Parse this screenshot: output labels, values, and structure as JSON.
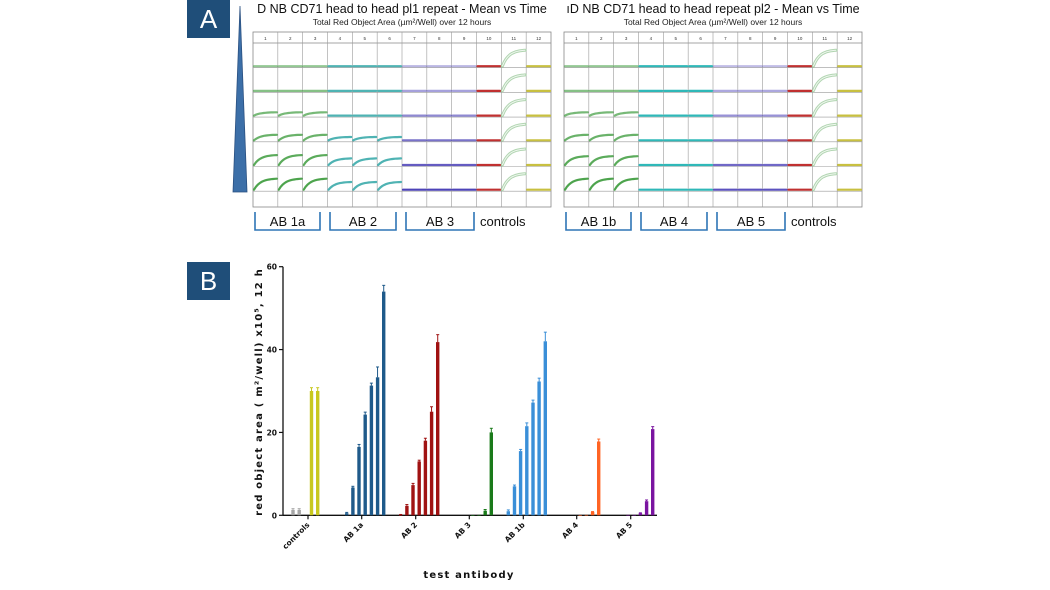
{
  "panel_labels": {
    "a": "A",
    "b": "B"
  },
  "colors": {
    "panel_box": "#1f4e79",
    "bracket": "#2e75b6",
    "wedge": "#3c6fa8"
  },
  "panel_a": {
    "plates": [
      {
        "title": "D NB CD71 head to head pl1 repeat - Mean vs Time",
        "subtitle": "Total Red Object Area (µm²/Well) over 12 hours",
        "columns": [
          "1",
          "2",
          "3",
          "4",
          "5",
          "6",
          "7",
          "8",
          "9",
          "10",
          "11",
          "12"
        ],
        "group_labels": [
          "AB 1a",
          "AB 2",
          "AB 3"
        ],
        "controls_label": "controls",
        "curve_levels": {
          "g1": [
            0,
            0,
            0.3,
            0.5,
            0.9,
            1,
            1
          ],
          "g2": [
            0,
            0,
            0,
            0.3,
            0.6,
            0.7,
            0.5
          ],
          "g3": [
            0,
            0,
            0,
            0,
            0,
            0,
            0
          ]
        },
        "group_colors": {
          "g1": "#3a9a3a",
          "g2": "#4fb3b3",
          "g3": "#3a2fb0",
          "c10": "#c03030",
          "c11": "#a8d0a8",
          "c12": "#c8c040"
        }
      },
      {
        "title": "ıD NB CD71 head to head repeat pl2 - Mean vs Time",
        "subtitle": "Total Red Object Area (µm²/Well) over 12 hours",
        "columns": [
          "1",
          "2",
          "3",
          "4",
          "5",
          "6",
          "7",
          "8",
          "9",
          "10",
          "11",
          "12"
        ],
        "group_labels": [
          "AB 1b",
          "AB 4",
          "AB 5"
        ],
        "controls_label": "controls",
        "curve_levels": {
          "g1": [
            0,
            0,
            0.3,
            0.5,
            0.8,
            1,
            1
          ],
          "g2": [
            0,
            0,
            0,
            0,
            0,
            0,
            0
          ],
          "g3": [
            0,
            0,
            0,
            0,
            0,
            0,
            0
          ]
        },
        "group_colors": {
          "g1": "#3a9a3a",
          "g2": "#2fb8b8",
          "g3": "#4a3fb8",
          "c10": "#c03030",
          "c11": "#a8d0a8",
          "c12": "#c8c040"
        }
      }
    ]
  },
  "chart_data": {
    "type": "bar",
    "title": "",
    "xlabel": "test antibody",
    "ylabel": "red object area (  m²/well) x10⁵, 12 h",
    "ylim": [
      0,
      60
    ],
    "yticks": [
      "0",
      "20",
      "40",
      "60"
    ],
    "grid": false,
    "categories": [
      "controls",
      "AB 1a",
      "AB 2",
      "AB 3",
      "AB 1b",
      "AB 4",
      "AB 5"
    ],
    "groups": [
      {
        "category": "controls",
        "slots": [
          0,
          1,
          3,
          4
        ],
        "values": [
          1.3,
          1.3,
          30,
          30
        ],
        "errors": [
          0.3,
          0.3,
          0.8,
          0.8
        ],
        "colors": [
          "#a6a6a6",
          "#a6a6a6",
          "#c8c81e",
          "#c8c81e"
        ]
      },
      {
        "category": "AB 1a",
        "slots": [
          0,
          1,
          2,
          3,
          4,
          5,
          6
        ],
        "values": [
          0.5,
          6.7,
          16.5,
          24.3,
          31.3,
          33.3,
          54
        ],
        "errors": [
          0.2,
          0.3,
          0.6,
          0.6,
          0.6,
          2.5,
          1.5
        ],
        "colors": [
          "#1f5a8a"
        ]
      },
      {
        "category": "AB 2",
        "slots": [
          0,
          1,
          2,
          3,
          4,
          5,
          6
        ],
        "values": [
          0.1,
          2.3,
          7.3,
          13,
          18,
          25,
          41.8
        ],
        "errors": [
          0.1,
          0.3,
          0.4,
          0.3,
          0.6,
          1.2,
          1.8
        ],
        "colors": [
          "#a01212"
        ]
      },
      {
        "category": "AB 3",
        "slots": [
          3,
          4,
          5,
          6
        ],
        "values": [
          0.05,
          0.1,
          1.1,
          20
        ],
        "errors": [
          0,
          0,
          0.3,
          1
        ],
        "colors": [
          "#1a7a1a"
        ]
      },
      {
        "category": "AB 1b",
        "slots": [
          0,
          1,
          2,
          3,
          4,
          5,
          6
        ],
        "values": [
          1,
          7,
          15.5,
          21.5,
          27.2,
          32.3,
          42
        ],
        "errors": [
          0.3,
          0.3,
          0.4,
          0.8,
          0.6,
          0.8,
          2.2
        ],
        "colors": [
          "#3a8fd8"
        ]
      },
      {
        "category": "AB 4",
        "slots": [
          3,
          4,
          5,
          6
        ],
        "values": [
          0.05,
          0.1,
          0.8,
          17.8
        ],
        "errors": [
          0,
          0,
          0.1,
          0.6
        ],
        "colors": [
          "#ff6424"
        ]
      },
      {
        "category": "AB 5",
        "slots": [
          2,
          3,
          4,
          5,
          6
        ],
        "values": [
          0.1,
          0.1,
          0.5,
          3.4,
          20.8
        ],
        "errors": [
          0,
          0,
          0.1,
          0.3,
          0.6
        ],
        "colors": [
          "#7a14a0"
        ]
      }
    ]
  }
}
